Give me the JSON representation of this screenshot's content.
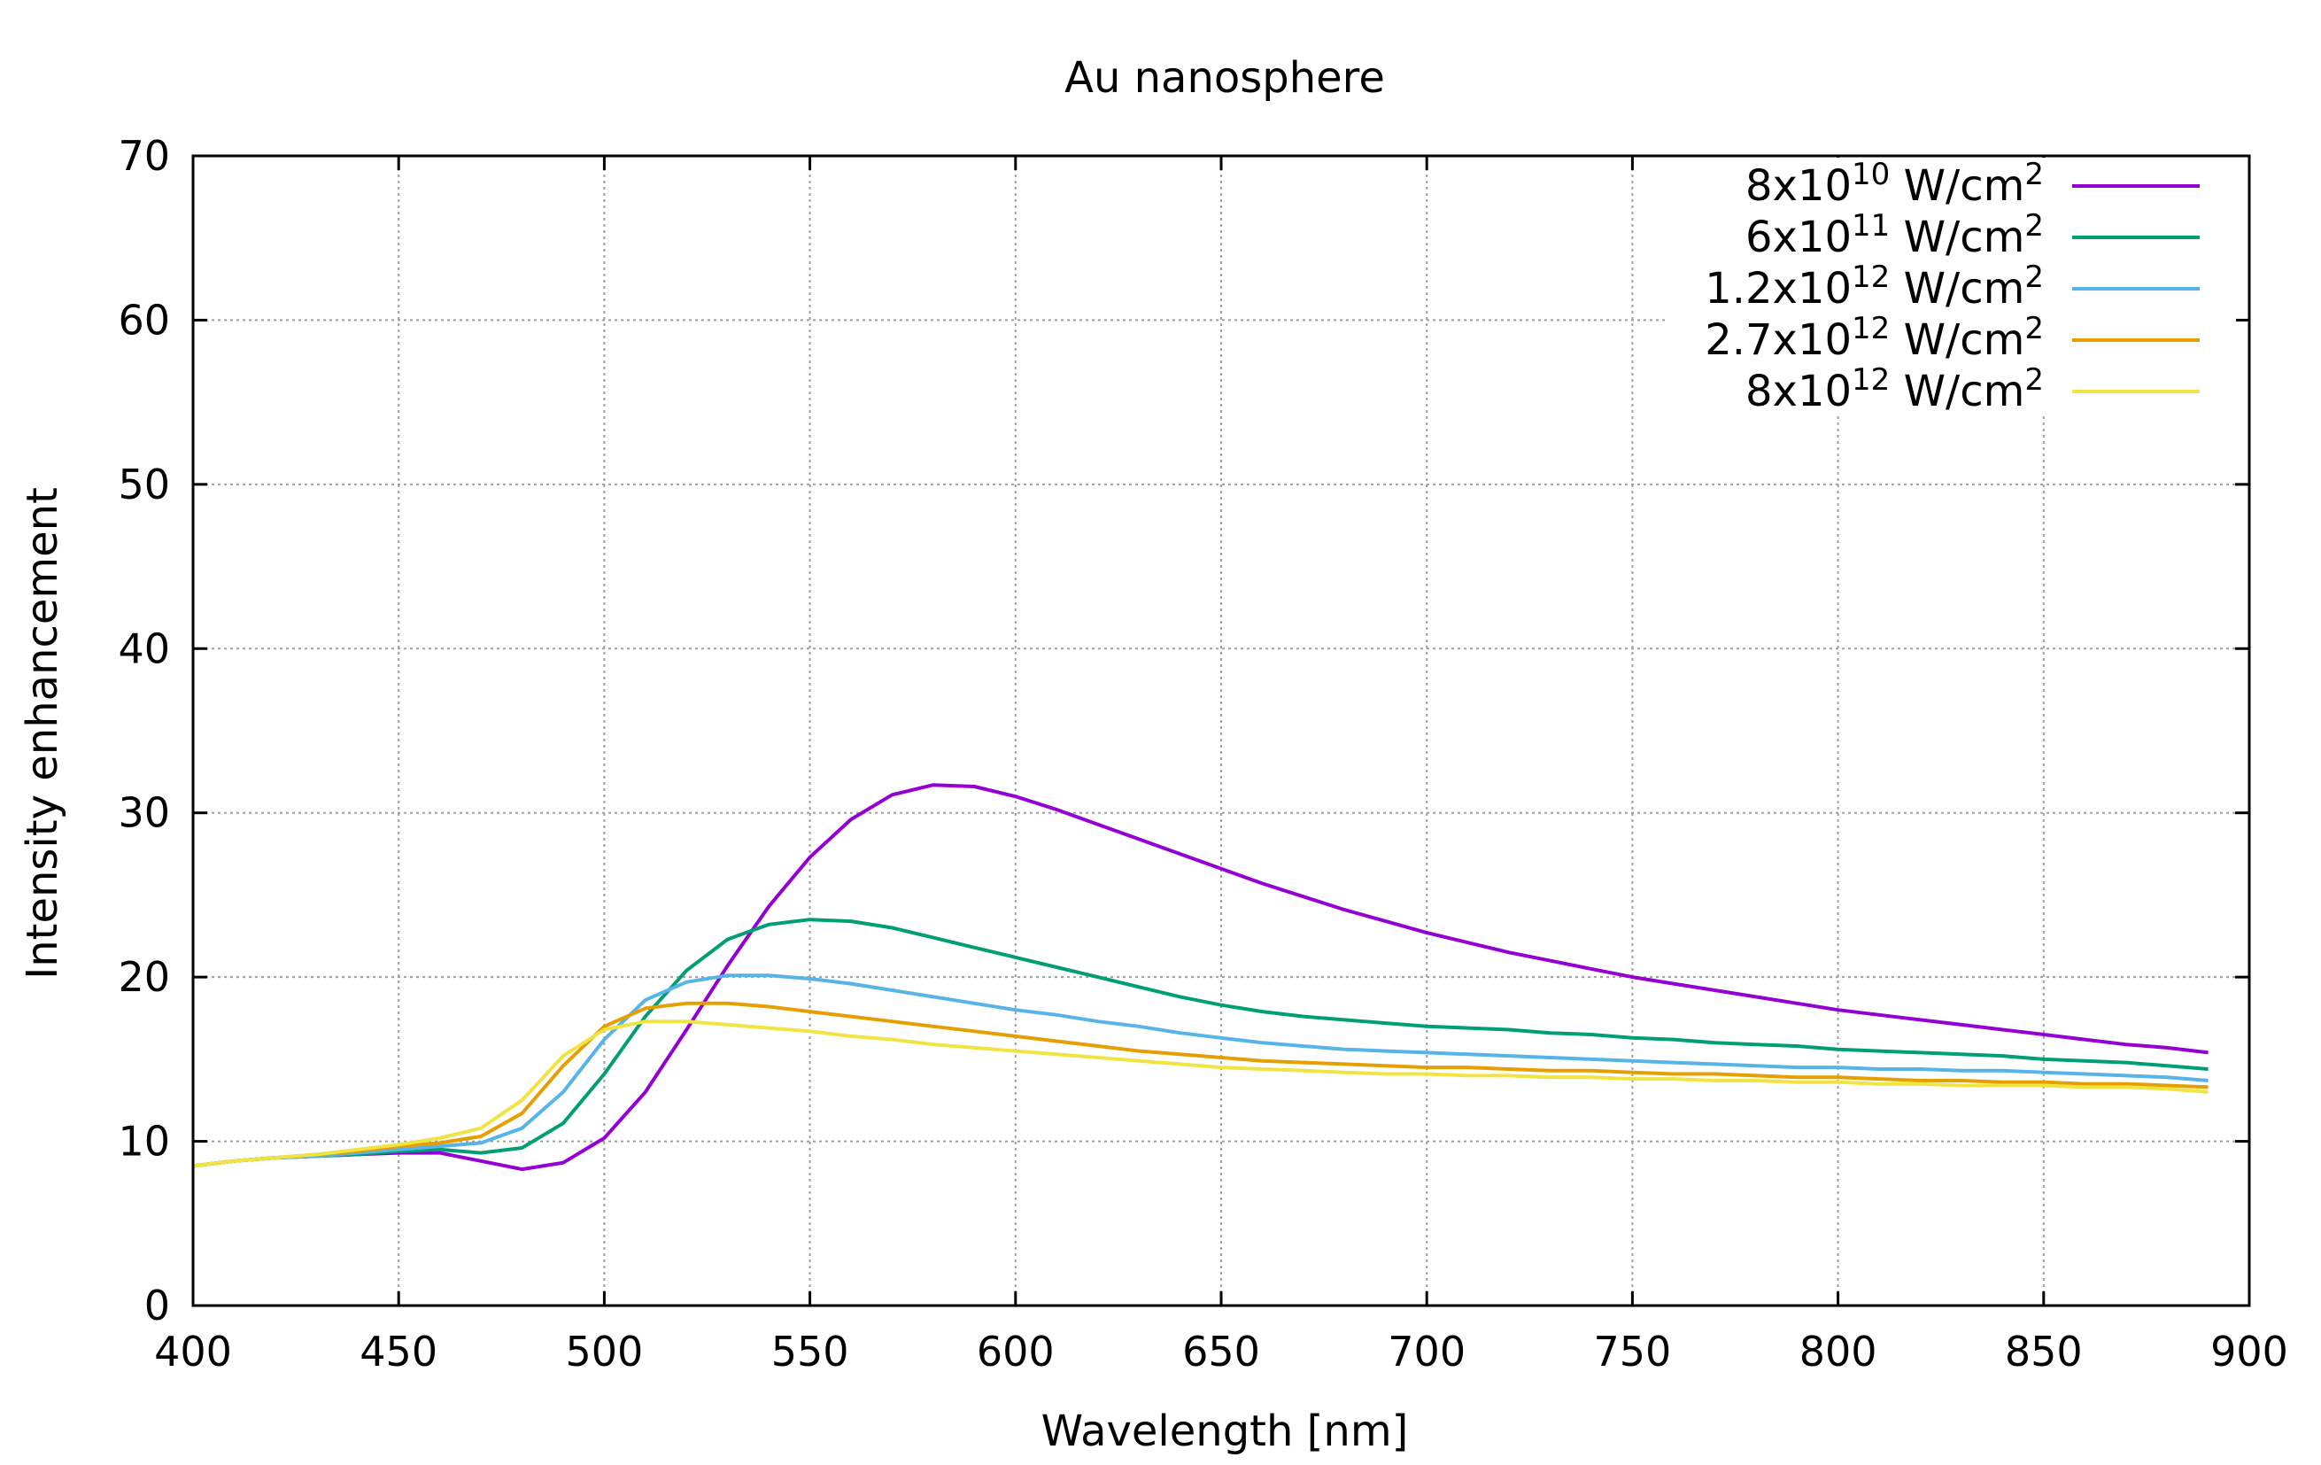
{
  "chart_data": {
    "type": "line",
    "title": "Au nanosphere",
    "xlabel": "Wavelength [nm]",
    "ylabel": "Intensity enhancement",
    "xlim": [
      400,
      900
    ],
    "ylim": [
      0,
      70
    ],
    "xticks": [
      "400",
      "450",
      "500",
      "550",
      "600",
      "650",
      "700",
      "750",
      "800",
      "850",
      "900"
    ],
    "yticks": [
      "0",
      "10",
      "20",
      "30",
      "40",
      "50",
      "60",
      "70"
    ],
    "grid": true,
    "legend_position": "top-right",
    "x": [
      400,
      410,
      420,
      430,
      440,
      450,
      460,
      470,
      480,
      490,
      500,
      510,
      520,
      530,
      540,
      550,
      560,
      570,
      580,
      590,
      600,
      610,
      620,
      630,
      640,
      650,
      660,
      670,
      680,
      690,
      700,
      710,
      720,
      730,
      740,
      750,
      760,
      770,
      780,
      790,
      800,
      810,
      820,
      830,
      840,
      850,
      860,
      870,
      880,
      890
    ],
    "series": [
      {
        "base": "8x10",
        "exp": "10",
        "unit": " W/cm",
        "unit_exp": "2",
        "color": "#9400d3",
        "values": [
          8.5,
          8.8,
          9.0,
          9.1,
          9.2,
          9.3,
          9.3,
          8.8,
          8.3,
          8.7,
          10.2,
          13.0,
          16.8,
          20.7,
          24.3,
          27.3,
          29.6,
          31.1,
          31.7,
          31.6,
          31.0,
          30.2,
          29.3,
          28.4,
          27.5,
          26.6,
          25.7,
          24.9,
          24.1,
          23.4,
          22.7,
          22.1,
          21.5,
          21.0,
          20.5,
          20.0,
          19.6,
          19.2,
          18.8,
          18.4,
          18.0,
          17.7,
          17.4,
          17.1,
          16.8,
          16.5,
          16.2,
          15.9,
          15.7,
          15.4
        ]
      },
      {
        "base": "6x10",
        "exp": "11",
        "unit": " W/cm",
        "unit_exp": "2",
        "color": "#009e73",
        "values": [
          8.5,
          8.8,
          9.0,
          9.1,
          9.2,
          9.4,
          9.5,
          9.3,
          9.6,
          11.1,
          14.1,
          17.6,
          20.4,
          22.3,
          23.2,
          23.5,
          23.4,
          23.0,
          22.4,
          21.8,
          21.2,
          20.6,
          20.0,
          19.4,
          18.8,
          18.3,
          17.9,
          17.6,
          17.4,
          17.2,
          17.0,
          16.9,
          16.8,
          16.6,
          16.5,
          16.3,
          16.2,
          16.0,
          15.9,
          15.8,
          15.6,
          15.5,
          15.4,
          15.3,
          15.2,
          15.0,
          14.9,
          14.8,
          14.6,
          14.4
        ]
      },
      {
        "base": "1.2x10",
        "exp": "12",
        "unit": " W/cm",
        "unit_exp": "2",
        "color": "#56b4e9",
        "values": [
          8.5,
          8.8,
          9.0,
          9.1,
          9.3,
          9.5,
          9.7,
          9.9,
          10.8,
          13.0,
          16.2,
          18.6,
          19.7,
          20.1,
          20.1,
          19.9,
          19.6,
          19.2,
          18.8,
          18.4,
          18.0,
          17.7,
          17.3,
          17.0,
          16.6,
          16.3,
          16.0,
          15.8,
          15.6,
          15.5,
          15.4,
          15.3,
          15.2,
          15.1,
          15.0,
          14.9,
          14.8,
          14.7,
          14.6,
          14.5,
          14.5,
          14.4,
          14.4,
          14.3,
          14.3,
          14.2,
          14.1,
          14.0,
          13.9,
          13.7
        ]
      },
      {
        "base": "2.7x10",
        "exp": "12",
        "unit": " W/cm",
        "unit_exp": "2",
        "color": "#e69f00",
        "values": [
          8.5,
          8.8,
          9.0,
          9.2,
          9.4,
          9.7,
          9.9,
          10.3,
          11.7,
          14.6,
          17.0,
          18.1,
          18.4,
          18.4,
          18.2,
          17.9,
          17.6,
          17.3,
          17.0,
          16.7,
          16.4,
          16.1,
          15.8,
          15.5,
          15.3,
          15.1,
          14.9,
          14.8,
          14.7,
          14.6,
          14.5,
          14.5,
          14.4,
          14.3,
          14.3,
          14.2,
          14.1,
          14.1,
          14.0,
          13.9,
          13.9,
          13.8,
          13.7,
          13.7,
          13.6,
          13.6,
          13.5,
          13.5,
          13.4,
          13.3
        ]
      },
      {
        "base": "8x10",
        "exp": "12",
        "unit": " W/cm",
        "unit_exp": "2",
        "color": "#f0e442",
        "values": [
          8.5,
          8.8,
          9.0,
          9.2,
          9.5,
          9.8,
          10.2,
          10.8,
          12.5,
          15.2,
          16.8,
          17.3,
          17.3,
          17.1,
          16.9,
          16.7,
          16.4,
          16.2,
          15.9,
          15.7,
          15.5,
          15.3,
          15.1,
          14.9,
          14.7,
          14.5,
          14.4,
          14.3,
          14.2,
          14.1,
          14.1,
          14.0,
          14.0,
          13.9,
          13.9,
          13.8,
          13.8,
          13.7,
          13.7,
          13.6,
          13.6,
          13.5,
          13.5,
          13.4,
          13.4,
          13.4,
          13.3,
          13.3,
          13.2,
          13.0
        ]
      }
    ]
  }
}
